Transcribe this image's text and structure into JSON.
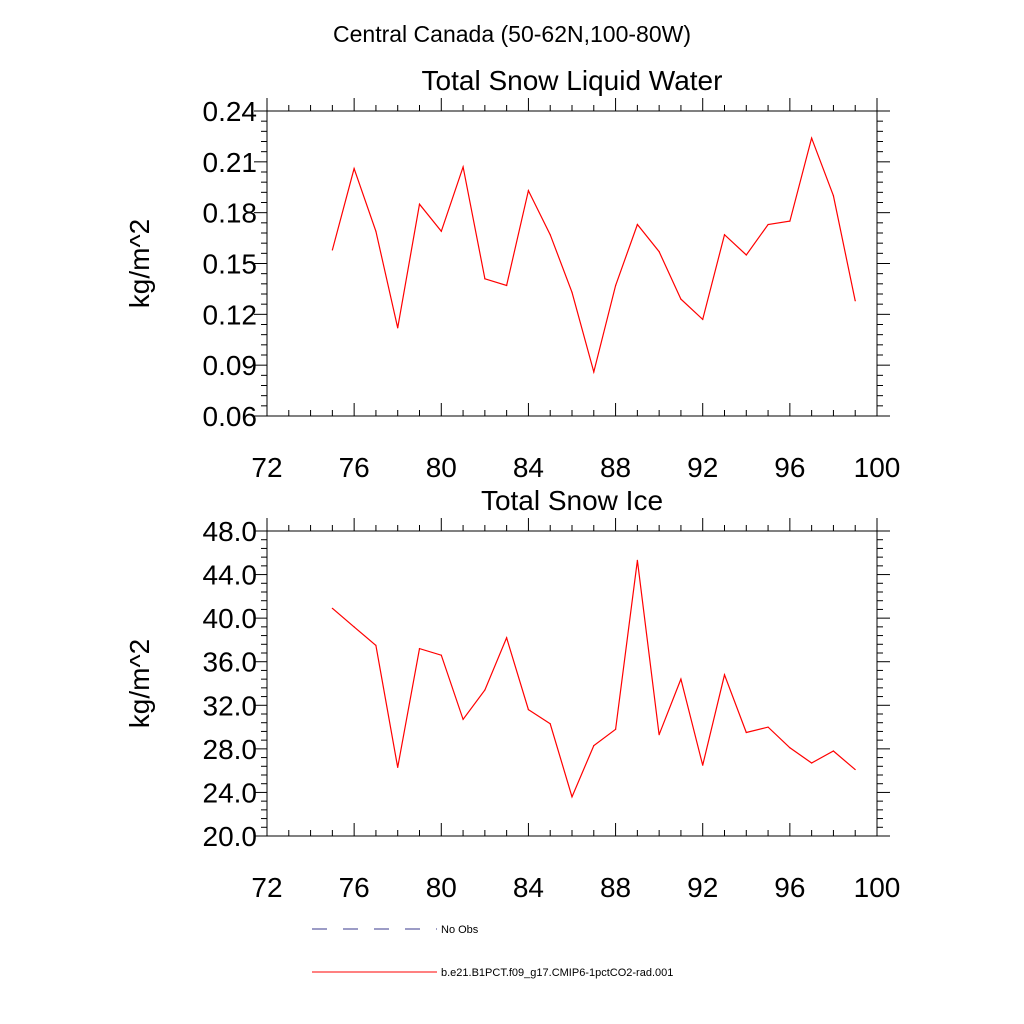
{
  "title": "Central Canada (50-62N,100-80W)",
  "chart_data": [
    {
      "type": "line",
      "title": "Total Snow Liquid Water",
      "xlabel": "",
      "ylabel": "kg/m^2",
      "xlim": [
        72,
        100
      ],
      "ylim": [
        0.06,
        0.24
      ],
      "x_ticks": [
        "72",
        "76",
        "80",
        "84",
        "88",
        "92",
        "96",
        "100"
      ],
      "y_ticks": [
        "0.06",
        "0.09",
        "0.12",
        "0.15",
        "0.18",
        "0.21",
        "0.24"
      ],
      "grid": false,
      "series": [
        {
          "name": "b.e21.B1PCT.f09_g17.CMIP6-1pctCO2-rad.001",
          "color": "#ff0000",
          "x": [
            75,
            76,
            77,
            78,
            79,
            80,
            81,
            82,
            83,
            84,
            85,
            86,
            87,
            88,
            89,
            90,
            91,
            92,
            93,
            94,
            95,
            96,
            97,
            98,
            99
          ],
          "y": [
            0.158,
            0.206,
            0.169,
            0.112,
            0.185,
            0.169,
            0.207,
            0.141,
            0.137,
            0.193,
            0.167,
            0.133,
            0.086,
            0.137,
            0.173,
            0.157,
            0.129,
            0.117,
            0.167,
            0.155,
            0.173,
            0.175,
            0.224,
            0.19,
            0.128
          ]
        }
      ]
    },
    {
      "type": "line",
      "title": "Total Snow Ice",
      "xlabel": "",
      "ylabel": "kg/m^2",
      "xlim": [
        72,
        100
      ],
      "ylim": [
        20,
        48
      ],
      "x_ticks": [
        "72",
        "76",
        "80",
        "84",
        "88",
        "92",
        "96",
        "100"
      ],
      "y_ticks": [
        "20.0",
        "24.0",
        "28.0",
        "32.0",
        "36.0",
        "40.0",
        "44.0",
        "48.0"
      ],
      "grid": false,
      "series": [
        {
          "name": "b.e21.B1PCT.f09_g17.CMIP6-1pctCO2-rad.001",
          "color": "#ff0000",
          "x": [
            75,
            76,
            77,
            78,
            79,
            80,
            81,
            82,
            83,
            84,
            85,
            86,
            87,
            88,
            89,
            90,
            91,
            92,
            93,
            94,
            95,
            96,
            97,
            98,
            99
          ],
          "y": [
            40.9,
            39.2,
            37.5,
            26.3,
            37.2,
            36.6,
            30.7,
            33.4,
            38.2,
            31.6,
            30.3,
            23.6,
            28.3,
            29.8,
            45.3,
            29.3,
            34.4,
            26.5,
            34.8,
            29.5,
            30.0,
            28.1,
            26.7,
            27.8,
            26.1
          ]
        }
      ]
    }
  ],
  "legend": {
    "placement": "bottom",
    "items": [
      {
        "label": "No Obs",
        "style": "dashed",
        "color": "#3a3a8c"
      },
      {
        "label": "b.e21.B1PCT.f09_g17.CMIP6-1pctCO2-rad.001",
        "style": "solid",
        "color": "#ff0000"
      }
    ]
  }
}
